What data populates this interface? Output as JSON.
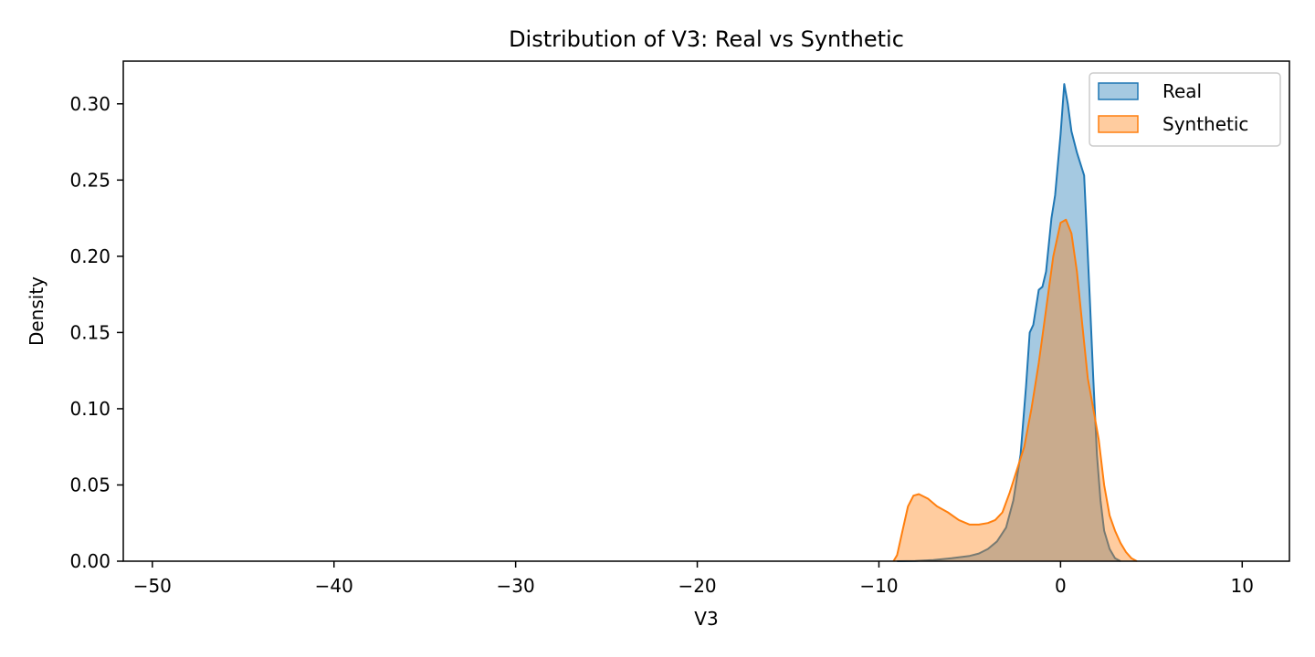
{
  "chart_data": {
    "type": "area",
    "title": "Distribution of V3: Real vs Synthetic",
    "xlabel": "V3",
    "ylabel": "Density",
    "xlim": [
      -51.6,
      12.6
    ],
    "ylim": [
      0,
      0.328
    ],
    "x_ticks": [
      -50,
      -40,
      -30,
      -20,
      -10,
      0,
      10
    ],
    "x_tick_labels": [
      "−50",
      "−40",
      "−30",
      "−20",
      "−10",
      "0",
      "10"
    ],
    "y_ticks": [
      0.0,
      0.05,
      0.1,
      0.15,
      0.2,
      0.25,
      0.3
    ],
    "y_tick_labels": [
      "0.00",
      "0.05",
      "0.10",
      "0.15",
      "0.20",
      "0.25",
      "0.30"
    ],
    "grid": false,
    "legend_position": "top-right",
    "series": [
      {
        "name": "Real",
        "color": "#1f77b4",
        "fill_opacity": 0.4,
        "x": [
          -9.0,
          -8.0,
          -7.0,
          -6.0,
          -5.0,
          -4.5,
          -4.0,
          -3.5,
          -3.0,
          -2.6,
          -2.2,
          -1.9,
          -1.7,
          -1.5,
          -1.2,
          -1.0,
          -0.8,
          -0.5,
          -0.3,
          0.0,
          0.2,
          0.4,
          0.6,
          0.9,
          1.3,
          1.6,
          1.8,
          2.0,
          2.2,
          2.4,
          2.7,
          3.0,
          3.3
        ],
        "y": [
          0.0,
          0.0002,
          0.0008,
          0.002,
          0.0035,
          0.005,
          0.008,
          0.013,
          0.022,
          0.04,
          0.07,
          0.115,
          0.15,
          0.155,
          0.178,
          0.18,
          0.19,
          0.225,
          0.24,
          0.28,
          0.313,
          0.3,
          0.282,
          0.268,
          0.253,
          0.175,
          0.12,
          0.07,
          0.04,
          0.02,
          0.008,
          0.002,
          0.0
        ]
      },
      {
        "name": "Synthetic",
        "color": "#ff7f0e",
        "fill_opacity": 0.4,
        "x": [
          -9.2,
          -9.0,
          -8.7,
          -8.4,
          -8.1,
          -7.8,
          -7.3,
          -6.8,
          -6.2,
          -5.6,
          -5.0,
          -4.5,
          -4.0,
          -3.6,
          -3.2,
          -2.8,
          -2.4,
          -2.0,
          -1.6,
          -1.2,
          -0.8,
          -0.4,
          0.0,
          0.3,
          0.6,
          0.9,
          1.2,
          1.5,
          1.8,
          2.1,
          2.4,
          2.7,
          3.0,
          3.3,
          3.6,
          3.9,
          4.2
        ],
        "y": [
          0.0,
          0.004,
          0.02,
          0.036,
          0.043,
          0.044,
          0.041,
          0.036,
          0.032,
          0.027,
          0.024,
          0.024,
          0.025,
          0.027,
          0.032,
          0.045,
          0.06,
          0.075,
          0.1,
          0.13,
          0.165,
          0.2,
          0.222,
          0.224,
          0.215,
          0.19,
          0.155,
          0.12,
          0.1,
          0.08,
          0.05,
          0.03,
          0.02,
          0.012,
          0.006,
          0.002,
          0.0
        ]
      }
    ]
  }
}
